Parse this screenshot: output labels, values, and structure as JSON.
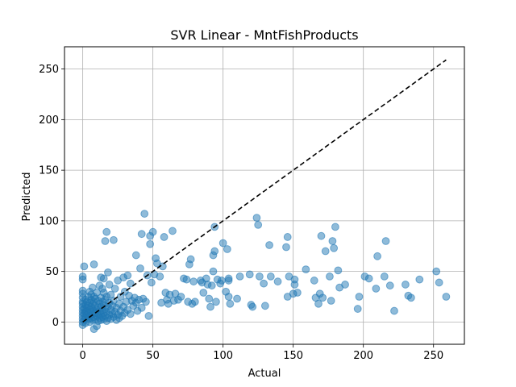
{
  "chart_data": {
    "type": "scatter",
    "title": "SVR Linear - MntFishProducts",
    "xlabel": "Actual",
    "ylabel": "Predicted",
    "xlim": [
      -13,
      272
    ],
    "ylim": [
      -22,
      272
    ],
    "xticks": [
      0,
      50,
      100,
      150,
      200,
      250
    ],
    "yticks": [
      0,
      50,
      100,
      150,
      200,
      250
    ],
    "grid": true,
    "colors": {
      "points": "#1f77b4",
      "reference": "#000000",
      "grid": "#b0b0b0"
    },
    "reference_line": {
      "style": "dashed",
      "x": [
        0,
        259
      ],
      "y": [
        0,
        259
      ]
    },
    "series": [
      {
        "values": [
          [
            0,
            0
          ],
          [
            0,
            3
          ],
          [
            0,
            6
          ],
          [
            0,
            9
          ],
          [
            0,
            12
          ],
          [
            0,
            15
          ],
          [
            0,
            18
          ],
          [
            0,
            20
          ],
          [
            0,
            24
          ],
          [
            0,
            28
          ],
          [
            0,
            31
          ],
          [
            0,
            -3
          ],
          [
            0,
            42
          ],
          [
            0,
            45
          ],
          [
            1,
            55
          ],
          [
            1,
            8
          ],
          [
            1,
            2
          ],
          [
            1,
            13
          ],
          [
            2,
            5
          ],
          [
            2,
            10
          ],
          [
            2,
            17
          ],
          [
            2,
            22
          ],
          [
            2,
            -1
          ],
          [
            3,
            7
          ],
          [
            3,
            14
          ],
          [
            3,
            20
          ],
          [
            3,
            11
          ],
          [
            4,
            3
          ],
          [
            4,
            9
          ],
          [
            4,
            16
          ],
          [
            4,
            25
          ],
          [
            5,
            6
          ],
          [
            5,
            12
          ],
          [
            5,
            19
          ],
          [
            5,
            30
          ],
          [
            5,
            0
          ],
          [
            6,
            4
          ],
          [
            6,
            10
          ],
          [
            6,
            15
          ],
          [
            6,
            22
          ],
          [
            6,
            27
          ],
          [
            7,
            2
          ],
          [
            7,
            8
          ],
          [
            7,
            13
          ],
          [
            7,
            18
          ],
          [
            7,
            34
          ],
          [
            8,
            5
          ],
          [
            8,
            11
          ],
          [
            8,
            20
          ],
          [
            8,
            25
          ],
          [
            8,
            -7
          ],
          [
            8,
            57
          ],
          [
            9,
            3
          ],
          [
            9,
            9
          ],
          [
            9,
            16
          ],
          [
            9,
            23
          ],
          [
            10,
            6
          ],
          [
            10,
            12
          ],
          [
            10,
            29
          ],
          [
            10,
            -4
          ],
          [
            11,
            1
          ],
          [
            11,
            8
          ],
          [
            11,
            14
          ],
          [
            11,
            21
          ],
          [
            12,
            4
          ],
          [
            12,
            10
          ],
          [
            12,
            18
          ],
          [
            12,
            36
          ],
          [
            13,
            2
          ],
          [
            13,
            7
          ],
          [
            13,
            15
          ],
          [
            13,
            24
          ],
          [
            13,
            44
          ],
          [
            14,
            5
          ],
          [
            14,
            11
          ],
          [
            14,
            20
          ],
          [
            14,
            33
          ],
          [
            15,
            3
          ],
          [
            15,
            9
          ],
          [
            15,
            17
          ],
          [
            15,
            29
          ],
          [
            15,
            43
          ],
          [
            16,
            6
          ],
          [
            16,
            13
          ],
          [
            16,
            22
          ],
          [
            16,
            80
          ],
          [
            17,
            1
          ],
          [
            17,
            10
          ],
          [
            17,
            25
          ],
          [
            17,
            89
          ],
          [
            18,
            4
          ],
          [
            18,
            15
          ],
          [
            18,
            49
          ],
          [
            19,
            7
          ],
          [
            19,
            19
          ],
          [
            19,
            37
          ],
          [
            20,
            3
          ],
          [
            20,
            12
          ],
          [
            20,
            27
          ],
          [
            21,
            8
          ],
          [
            21,
            16
          ],
          [
            22,
            5
          ],
          [
            22,
            21
          ],
          [
            22,
            81
          ],
          [
            23,
            10
          ],
          [
            23,
            33
          ],
          [
            24,
            2
          ],
          [
            24,
            14
          ],
          [
            25,
            7
          ],
          [
            25,
            41
          ],
          [
            26,
            4
          ],
          [
            26,
            18
          ],
          [
            27,
            11
          ],
          [
            27,
            25
          ],
          [
            28,
            6
          ],
          [
            29,
            15
          ],
          [
            29,
            44
          ],
          [
            30,
            9
          ],
          [
            30,
            30
          ],
          [
            31,
            20
          ],
          [
            32,
            12
          ],
          [
            32,
            46
          ],
          [
            33,
            26
          ],
          [
            34,
            8
          ],
          [
            34,
            38
          ],
          [
            35,
            21
          ],
          [
            36,
            16
          ],
          [
            37,
            24
          ],
          [
            38,
            19
          ],
          [
            38,
            66
          ],
          [
            39,
            11
          ],
          [
            40,
            22
          ],
          [
            41,
            53
          ],
          [
            42,
            14
          ],
          [
            42,
            87
          ],
          [
            43,
            23
          ],
          [
            44,
            107
          ],
          [
            45,
            20
          ],
          [
            46,
            46
          ],
          [
            47,
            6
          ],
          [
            48,
            85
          ],
          [
            48,
            77
          ],
          [
            49,
            39
          ],
          [
            50,
            89
          ],
          [
            51,
            47
          ],
          [
            52,
            63
          ],
          [
            53,
            58
          ],
          [
            55,
            45
          ],
          [
            56,
            19
          ],
          [
            57,
            55
          ],
          [
            58,
            84
          ],
          [
            59,
            29
          ],
          [
            60,
            22
          ],
          [
            61,
            18
          ],
          [
            62,
            27
          ],
          [
            64,
            90
          ],
          [
            65,
            21
          ],
          [
            66,
            28
          ],
          [
            68,
            22
          ],
          [
            70,
            25
          ],
          [
            72,
            43
          ],
          [
            74,
            42
          ],
          [
            75,
            20
          ],
          [
            76,
            57
          ],
          [
            77,
            62
          ],
          [
            78,
            18
          ],
          [
            79,
            40
          ],
          [
            80,
            20
          ],
          [
            84,
            41
          ],
          [
            85,
            39
          ],
          [
            86,
            29
          ],
          [
            88,
            43
          ],
          [
            89,
            37
          ],
          [
            90,
            23
          ],
          [
            91,
            15
          ],
          [
            92,
            36
          ],
          [
            93,
            66
          ],
          [
            93,
            50
          ],
          [
            94,
            94
          ],
          [
            94,
            70
          ],
          [
            95,
            20
          ],
          [
            96,
            42
          ],
          [
            98,
            38
          ],
          [
            99,
            41
          ],
          [
            100,
            78
          ],
          [
            102,
            30
          ],
          [
            103,
            72
          ],
          [
            104,
            41
          ],
          [
            104,
            25
          ],
          [
            104,
            43
          ],
          [
            105,
            18
          ],
          [
            110,
            23
          ],
          [
            112,
            45
          ],
          [
            119,
            47
          ],
          [
            120,
            17
          ],
          [
            121,
            15
          ],
          [
            124,
            103
          ],
          [
            125,
            96
          ],
          [
            126,
            45
          ],
          [
            129,
            38
          ],
          [
            130,
            16
          ],
          [
            133,
            76
          ],
          [
            134,
            45
          ],
          [
            139,
            40
          ],
          [
            145,
            74
          ],
          [
            146,
            25
          ],
          [
            146,
            84
          ],
          [
            147,
            45
          ],
          [
            150,
            28
          ],
          [
            151,
            42
          ],
          [
            151,
            37
          ],
          [
            153,
            29
          ],
          [
            159,
            52
          ],
          [
            165,
            41
          ],
          [
            166,
            24
          ],
          [
            168,
            18
          ],
          [
            169,
            28
          ],
          [
            170,
            85
          ],
          [
            171,
            24
          ],
          [
            173,
            70
          ],
          [
            176,
            45
          ],
          [
            177,
            21
          ],
          [
            178,
            80
          ],
          [
            179,
            73
          ],
          [
            180,
            94
          ],
          [
            182,
            51
          ],
          [
            183,
            34
          ],
          [
            187,
            37
          ],
          [
            196,
            13
          ],
          [
            197,
            25
          ],
          [
            201,
            45
          ],
          [
            204,
            43
          ],
          [
            209,
            33
          ],
          [
            210,
            65
          ],
          [
            215,
            45
          ],
          [
            216,
            80
          ],
          [
            219,
            36
          ],
          [
            222,
            11
          ],
          [
            230,
            37
          ],
          [
            232,
            26
          ],
          [
            234,
            24
          ],
          [
            240,
            42
          ],
          [
            252,
            50
          ],
          [
            254,
            39
          ],
          [
            259,
            25
          ]
        ]
      }
    ]
  }
}
